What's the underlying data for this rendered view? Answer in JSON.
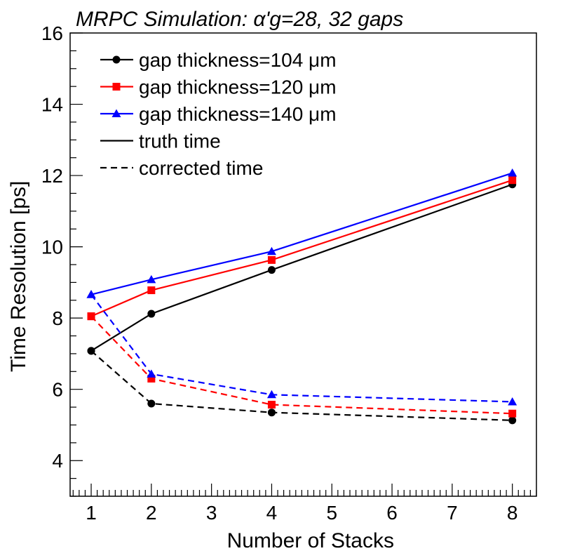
{
  "chart_data": {
    "type": "line",
    "title": "MRPC Simulation:  α'g=28, 32 gaps",
    "xlabel": "Number of Stacks",
    "ylabel": "Time Resolution [ps]",
    "xlim": [
      0.65,
      8.4
    ],
    "ylim": [
      3,
      16
    ],
    "x_ticks": [
      1,
      2,
      3,
      4,
      5,
      6,
      7,
      8
    ],
    "y_ticks": [
      4,
      6,
      8,
      10,
      12,
      14,
      16
    ],
    "x": [
      1,
      2,
      4,
      8
    ],
    "series": [
      {
        "name": "gap thickness=104 μm",
        "color": "#000000",
        "marker": "circle",
        "kind": "truth",
        "values": [
          7.08,
          8.12,
          9.35,
          11.75
        ]
      },
      {
        "name": "gap thickness=120 μm",
        "color": "#ff0000",
        "marker": "square",
        "kind": "truth",
        "values": [
          8.05,
          8.78,
          9.63,
          11.87
        ]
      },
      {
        "name": "gap thickness=140 μm",
        "color": "#0000ff",
        "marker": "triangle",
        "kind": "truth",
        "values": [
          8.66,
          9.08,
          9.87,
          12.07
        ]
      },
      {
        "name": "gap thickness=104 μm",
        "color": "#000000",
        "marker": "circle",
        "kind": "corrected",
        "values": [
          7.08,
          5.6,
          5.35,
          5.13
        ]
      },
      {
        "name": "gap thickness=120 μm",
        "color": "#ff0000",
        "marker": "square",
        "kind": "corrected",
        "values": [
          8.05,
          6.3,
          5.57,
          5.32
        ]
      },
      {
        "name": "gap thickness=140 μm",
        "color": "#0000ff",
        "marker": "triangle",
        "kind": "corrected",
        "values": [
          8.66,
          6.43,
          5.85,
          5.65
        ]
      }
    ],
    "legend": [
      {
        "label": "gap thickness=104 μm",
        "color": "#000000",
        "marker": "circle",
        "style": "solid"
      },
      {
        "label": "gap thickness=120 μm",
        "color": "#ff0000",
        "marker": "square",
        "style": "solid"
      },
      {
        "label": "gap thickness=140 μm",
        "color": "#0000ff",
        "marker": "triangle",
        "style": "solid"
      },
      {
        "label": "truth time",
        "color": "#000000",
        "marker": "none",
        "style": "solid"
      },
      {
        "label": "corrected time",
        "color": "#000000",
        "marker": "none",
        "style": "dashed"
      }
    ],
    "legend_position": "top-left",
    "grid": false
  }
}
